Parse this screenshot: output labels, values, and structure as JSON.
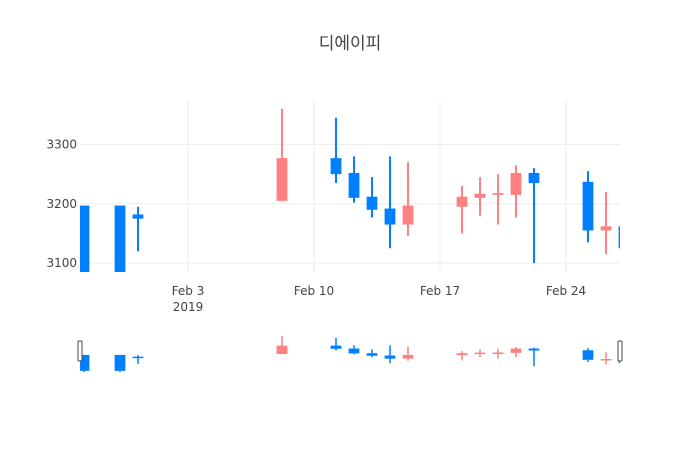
{
  "chart_data": {
    "type": "candlestick",
    "title": "디에이피",
    "xlabel": "",
    "ylabel": "",
    "ylim": [
      3085,
      3375
    ],
    "xlim": [
      "2019-01-28",
      "2019-02-27"
    ],
    "grid": true,
    "legend": "none",
    "colors": {
      "increasing": "#FF8080",
      "decreasing": "#0080FF",
      "grid": "#eeeeee"
    },
    "y_ticks": [
      "3100",
      "3200",
      "3300"
    ],
    "x_ticks": [
      {
        "date": "2019-02-03",
        "label": "Feb 3",
        "sublabel": "2019"
      },
      {
        "date": "2019-02-10",
        "label": "Feb 10",
        "sublabel": ""
      },
      {
        "date": "2019-02-17",
        "label": "Feb 17",
        "sublabel": ""
      },
      {
        "date": "2019-02-24",
        "label": "Feb 24",
        "sublabel": ""
      }
    ],
    "candles": [
      {
        "date": "2019-01-28",
        "open": 3197,
        "high": 3197,
        "low": 3050,
        "close": 3060
      },
      {
        "date": "2019-01-30",
        "open": 3197,
        "high": 3197,
        "low": 3050,
        "close": 3060
      },
      {
        "date": "2019-01-31",
        "open": 3182,
        "high": 3195,
        "low": 3120,
        "close": 3175
      },
      {
        "date": "2019-02-08",
        "open": 3205,
        "high": 3360,
        "low": 3205,
        "close": 3277
      },
      {
        "date": "2019-02-11",
        "open": 3277,
        "high": 3345,
        "low": 3235,
        "close": 3250
      },
      {
        "date": "2019-02-12",
        "open": 3252,
        "high": 3280,
        "low": 3202,
        "close": 3210
      },
      {
        "date": "2019-02-13",
        "open": 3212,
        "high": 3245,
        "low": 3177,
        "close": 3190
      },
      {
        "date": "2019-02-14",
        "open": 3192,
        "high": 3280,
        "low": 3125,
        "close": 3165
      },
      {
        "date": "2019-02-15",
        "open": 3165,
        "high": 3270,
        "low": 3146,
        "close": 3197
      },
      {
        "date": "2019-02-18",
        "open": 3195,
        "high": 3230,
        "low": 3150,
        "close": 3212
      },
      {
        "date": "2019-02-19",
        "open": 3210,
        "high": 3245,
        "low": 3180,
        "close": 3217
      },
      {
        "date": "2019-02-20",
        "open": 3215,
        "high": 3250,
        "low": 3165,
        "close": 3218
      },
      {
        "date": "2019-02-21",
        "open": 3215,
        "high": 3265,
        "low": 3177,
        "close": 3252
      },
      {
        "date": "2019-02-22",
        "open": 3252,
        "high": 3260,
        "low": 3100,
        "close": 3235
      },
      {
        "date": "2019-02-25",
        "open": 3237,
        "high": 3255,
        "low": 3135,
        "close": 3155
      },
      {
        "date": "2019-02-26",
        "open": 3155,
        "high": 3220,
        "low": 3115,
        "close": 3162
      },
      {
        "date": "2019-02-27",
        "open": 3162,
        "high": 3205,
        "low": 3112,
        "close": 3125
      }
    ],
    "rangeslider": true
  }
}
